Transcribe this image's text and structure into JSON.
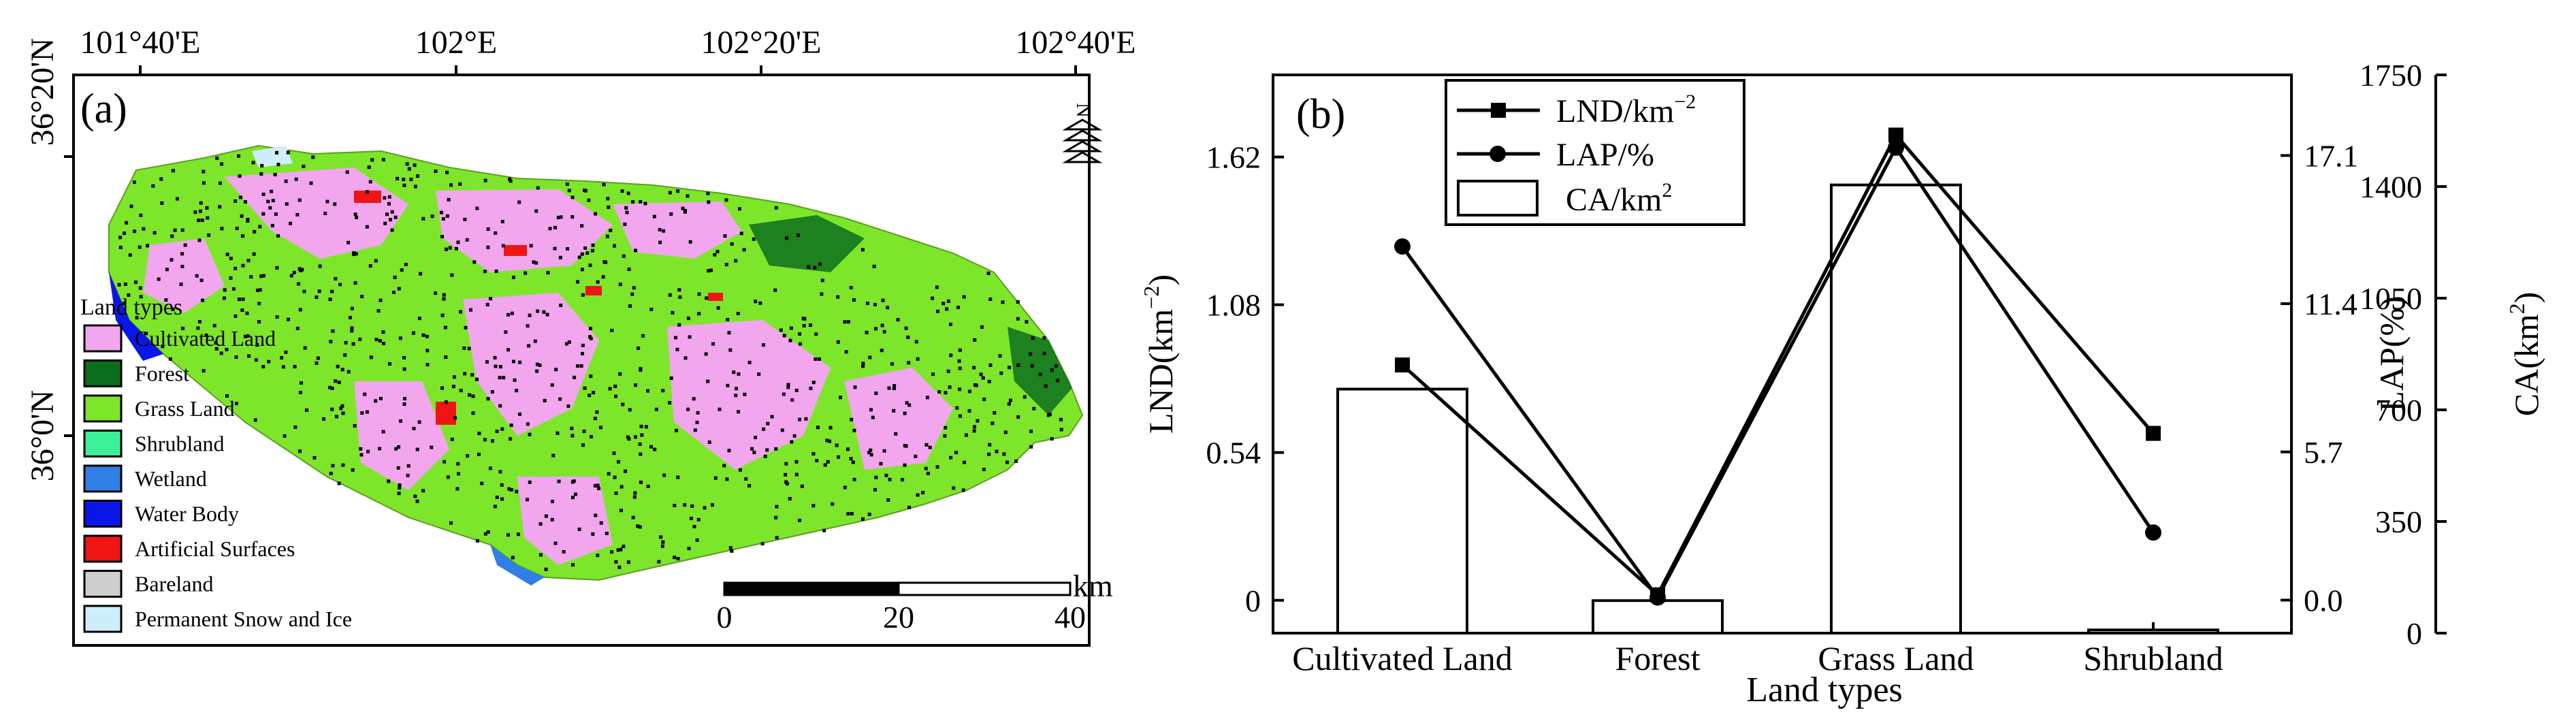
{
  "map_panel": {
    "panel_label": "(a)",
    "top_lon_labels": [
      "101°40'E",
      "102°E",
      "102°20'E",
      "102°40'E"
    ],
    "left_lat_labels": [
      "36°20'N",
      "36°0'N"
    ],
    "north_label": "N",
    "legend_title": "Land types",
    "legend": [
      {
        "label": "Cultivated Land",
        "color": "#f2a6ee"
      },
      {
        "label": "Forest",
        "color": "#0b6e1c"
      },
      {
        "label": "Grass Land",
        "color": "#7ee62a"
      },
      {
        "label": "Shrubland",
        "color": "#3cf09a"
      },
      {
        "label": "Wetland",
        "color": "#2f7fe6"
      },
      {
        "label": "Water Body",
        "color": "#0a16e8"
      },
      {
        "label": "Artificial Surfaces",
        "color": "#f01414"
      },
      {
        "label": "Bareland",
        "color": "#cfcfcf"
      },
      {
        "label": "Permanent Snow and Ice",
        "color": "#cdeefa"
      }
    ],
    "scalebar": {
      "ticks": [
        "0",
        "20",
        "40"
      ],
      "unit": "km"
    }
  },
  "chart_data": {
    "type": "bar",
    "panel_label": "(b)",
    "categories": [
      "Cultivated Land",
      "Forest",
      "Grass Land",
      "Shrubland"
    ],
    "xlabel": "Land types",
    "legend": [
      "LND/km",
      "LAP/%",
      "CA/km"
    ],
    "legend_superscripts": [
      "−2",
      "",
      "2"
    ],
    "axes": {
      "left": {
        "label": "LND(km",
        "label_sup": "−2",
        "label_close": ")",
        "ticks": [
          "0",
          "0.54",
          "1.08",
          "1.62"
        ],
        "range": [
          -0.12,
          1.92
        ]
      },
      "middle": {
        "label": "LAP(%)",
        "ticks": [
          "0.0",
          "5.7",
          "11.4",
          "17.1"
        ],
        "range": [
          -1.27,
          20.2
        ]
      },
      "right": {
        "label": "CA(km",
        "label_sup": "2",
        "label_close": ")",
        "ticks": [
          "0",
          "350",
          "700",
          "1050",
          "1400",
          "1750"
        ],
        "range": [
          0,
          1750
        ]
      }
    },
    "series": [
      {
        "name": "LND/km−2",
        "axis": "left",
        "marker": "square",
        "values": [
          0.86,
          0.02,
          1.7,
          0.61
        ]
      },
      {
        "name": "LAP/%",
        "axis": "middle",
        "marker": "circle",
        "values": [
          13.6,
          0.1,
          17.4,
          2.6
        ]
      },
      {
        "name": "CA/km2",
        "axis": "right",
        "style": "bar",
        "values": [
          765,
          102,
          1405,
          10
        ]
      }
    ],
    "grid": false,
    "legend_position": "top-left"
  }
}
